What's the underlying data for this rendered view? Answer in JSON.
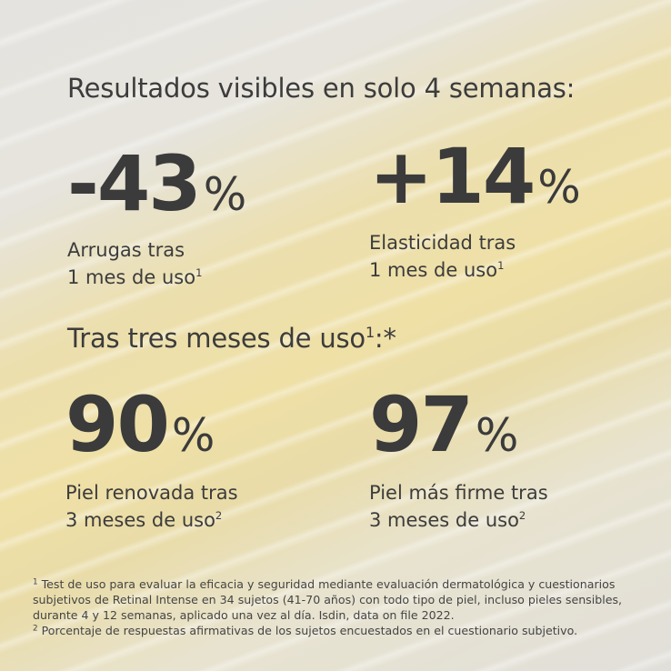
{
  "heading1": "Resultados visibles en solo 4 semanas:",
  "stats_top": [
    {
      "value": "-43",
      "unit": "%",
      "line1": "Arrugas tras",
      "line2": "1 mes de uso",
      "sup": "1"
    },
    {
      "value": "+14",
      "unit": "%",
      "line1": "Elasticidad tras",
      "line2": "1 mes de uso",
      "sup": "1"
    }
  ],
  "heading2": {
    "text": "Tras tres meses de uso",
    "sup": "1",
    "suffix": ":*"
  },
  "stats_bottom": [
    {
      "value": "90",
      "unit": "%",
      "line1": "Piel renovada tras",
      "line2": "3 meses de uso",
      "sup": "2"
    },
    {
      "value": "97",
      "unit": "%",
      "line1": "Piel más firme tras",
      "line2": "3 meses de uso",
      "sup": "2"
    }
  ],
  "footnotes": [
    {
      "mark": "1",
      "text": " Test de uso para evaluar la eficacia y seguridad mediante evaluación dermatológica y cuestionarios subjetivos de Retinal Intense en 34 sujetos (41-70 años) con todo tipo de piel, incluso pieles sensibles, durante 4 y 12 semanas, aplicado una vez al día. Isdin, data on file 2022."
    },
    {
      "mark": "2",
      "text": " Porcentaje de respuestas afirmativas de los sujetos encuestados en el cuestionario subjetivo."
    }
  ]
}
